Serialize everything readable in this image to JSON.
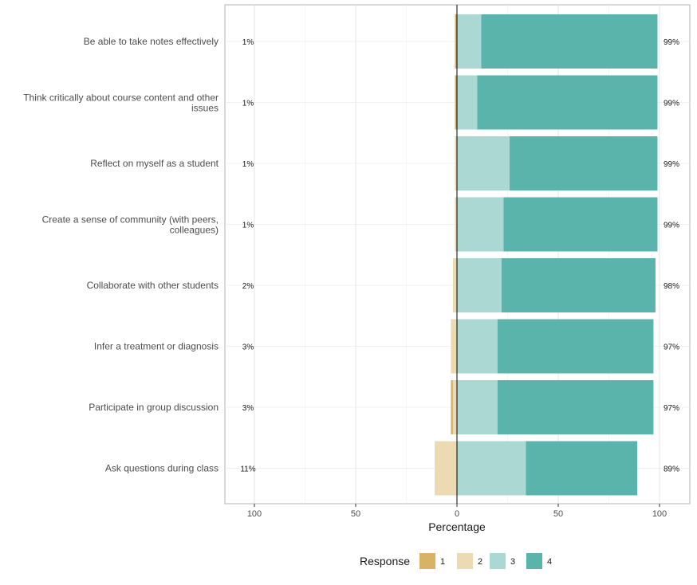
{
  "chart_data": {
    "type": "bar",
    "subtype": "diverging-stacked-likert",
    "xlabel": "Percentage",
    "xlim": [
      -100,
      100
    ],
    "x_tick_values": [
      -100,
      -50,
      0,
      50,
      100
    ],
    "x_tick_labels": [
      "100",
      "50",
      "0",
      "50",
      "100"
    ],
    "grid": true,
    "legend_position": "bottom",
    "legend_title": "Response",
    "levels": [
      "1",
      "2",
      "3",
      "4"
    ],
    "colors": {
      "1": "#d8b365",
      "2": "#ebdab2",
      "3": "#acd8d4",
      "4": "#5ab4ac"
    },
    "categories": [
      "Be able to take notes effectively",
      "Think critically about course content and other issues",
      "Reflect on myself as a student",
      "Create a sense of community (with peers, colleagues)",
      "Collaborate with other students",
      "Infer a treatment or diagnosis",
      "Participate in group discussion",
      "Ask questions during class"
    ],
    "series": [
      {
        "name": "1",
        "values": [
          1,
          1,
          0,
          0,
          0,
          0,
          1,
          0
        ]
      },
      {
        "name": "2",
        "values": [
          0,
          0,
          1,
          1,
          2,
          3,
          2,
          11
        ]
      },
      {
        "name": "3",
        "values": [
          12,
          10,
          26,
          23,
          22,
          20,
          20,
          34
        ]
      },
      {
        "name": "4",
        "values": [
          87,
          89,
          73,
          76,
          76,
          77,
          77,
          55
        ]
      }
    ],
    "left_labels": [
      "1%",
      "1%",
      "1%",
      "1%",
      "2%",
      "3%",
      "3%",
      "11%"
    ],
    "right_labels": [
      "99%",
      "99%",
      "99%",
      "99%",
      "98%",
      "97%",
      "97%",
      "89%"
    ]
  }
}
